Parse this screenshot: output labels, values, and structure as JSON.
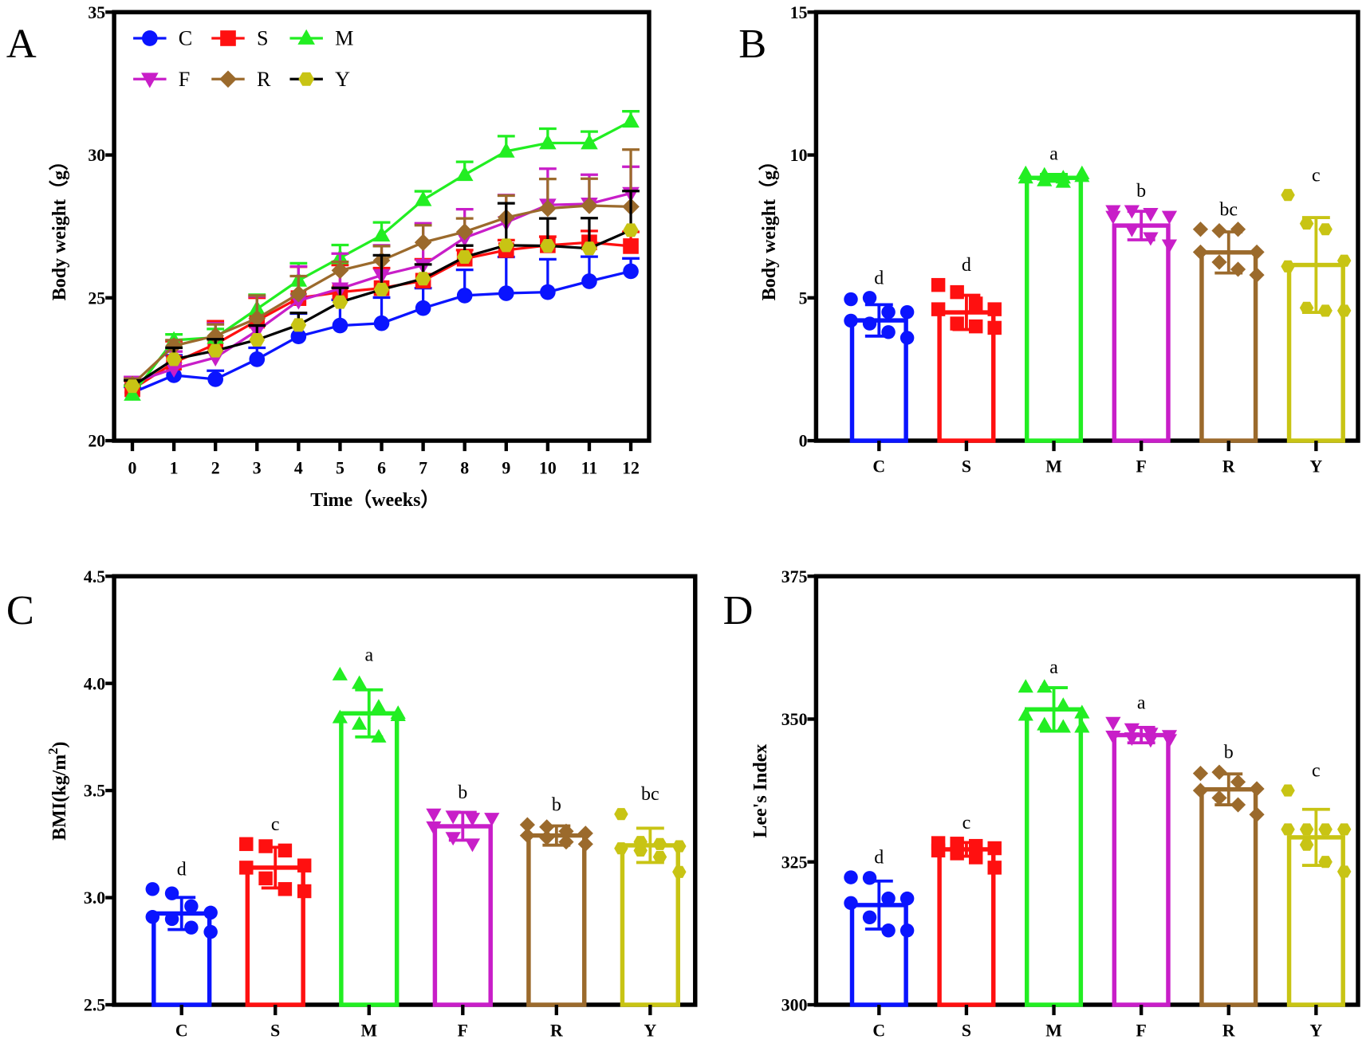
{
  "groups": [
    "C",
    "S",
    "M",
    "F",
    "R",
    "Y"
  ],
  "colors": {
    "C": "#0a14ff",
    "S": "#ff1010",
    "M": "#22ee22",
    "F": "#c81ec8",
    "R": "#9b6a2c",
    "Y": "#c8c414",
    "Y_line": "#000000"
  },
  "markers": {
    "C": "circle",
    "S": "square",
    "M": "triangle-up",
    "F": "triangle-down",
    "R": "diamond",
    "Y": "hexagon"
  },
  "chart_data": [
    {
      "panel": "A",
      "type": "line",
      "ylabel": "Body weight（g）",
      "xlabel": "Time（weeks）",
      "ylim": [
        20,
        35
      ],
      "yticks": [
        "20",
        "25",
        "30",
        "35"
      ],
      "x": [
        0,
        1,
        2,
        3,
        4,
        5,
        6,
        7,
        8,
        9,
        10,
        11,
        12
      ],
      "legend": "top-left",
      "series": [
        {
          "name": "C",
          "values": [
            21.68,
            22.29,
            22.15,
            22.85,
            23.65,
            24.03,
            24.11,
            24.64,
            25.08,
            25.16,
            25.2,
            25.58,
            25.93
          ],
          "err": [
            0.2,
            0.7,
            0.3,
            0.4,
            0.8,
            0.9,
            0.9,
            0.7,
            0.9,
            1.27,
            1.15,
            0.86,
            0.45
          ]
        },
        {
          "name": "S",
          "values": [
            21.8,
            22.73,
            23.38,
            24.2,
            24.99,
            25.2,
            25.34,
            25.6,
            26.37,
            26.67,
            26.84,
            26.94,
            26.81
          ],
          "err": [
            0.3,
            0.75,
            0.8,
            0.8,
            1.1,
            0.95,
            0.7,
            0.75,
            0.3,
            0.35,
            0.3,
            0.4,
            0.5
          ]
        },
        {
          "name": "M",
          "values": [
            21.62,
            23.52,
            23.61,
            24.61,
            25.61,
            26.4,
            27.19,
            28.43,
            29.31,
            30.13,
            30.42,
            30.42,
            31.18
          ],
          "err": [
            0.3,
            0.2,
            0.3,
            0.5,
            0.6,
            0.45,
            0.45,
            0.3,
            0.45,
            0.53,
            0.5,
            0.4,
            0.35
          ]
        },
        {
          "name": "F",
          "values": [
            22.03,
            22.52,
            22.91,
            23.85,
            24.9,
            25.32,
            25.79,
            26.14,
            27.1,
            27.64,
            28.25,
            28.29,
            28.66
          ],
          "err": [
            0.2,
            0.6,
            1.2,
            1.2,
            1.2,
            1.23,
            1.05,
            1.47,
            1.0,
            0.96,
            1.27,
            1.02,
            0.93
          ]
        },
        {
          "name": "R",
          "values": [
            21.97,
            23.32,
            23.67,
            24.28,
            25.14,
            25.96,
            26.31,
            26.94,
            27.31,
            27.81,
            28.13,
            28.23,
            28.19
          ],
          "err": [
            0.2,
            0.2,
            0.4,
            0.8,
            0.62,
            0.3,
            0.5,
            0.6,
            0.47,
            0.77,
            1.03,
            0.94,
            2.0
          ]
        },
        {
          "name": "Y",
          "values": [
            21.91,
            22.85,
            23.15,
            23.53,
            24.05,
            24.85,
            25.29,
            25.67,
            26.43,
            26.84,
            26.82,
            26.73,
            27.37
          ],
          "err": [
            0.2,
            0.4,
            0.4,
            0.5,
            0.42,
            0.5,
            1.2,
            0.5,
            0.4,
            1.47,
            0.96,
            1.06,
            1.37
          ]
        }
      ]
    },
    {
      "panel": "B",
      "type": "bar",
      "ylabel": "Body weight（g）",
      "ylim": [
        0,
        15
      ],
      "yticks": [
        "0",
        "5",
        "10",
        "15"
      ],
      "categories": [
        "C",
        "S",
        "M",
        "F",
        "R",
        "Y"
      ],
      "values": [
        4.21,
        4.49,
        9.2,
        7.53,
        6.59,
        6.15
      ],
      "sd": [
        0.55,
        0.6,
        0.12,
        0.5,
        0.72,
        1.66
      ],
      "letters": [
        "d",
        "d",
        "a",
        "b",
        "bc",
        "c"
      ],
      "points": [
        [
          4.95,
          5.0,
          4.5,
          4.5,
          4.2,
          4.1,
          3.8,
          3.6
        ],
        [
          5.45,
          5.2,
          4.8,
          4.6,
          4.6,
          4.1,
          4.0,
          3.95
        ],
        [
          9.35,
          9.3,
          9.2,
          9.25,
          9.2,
          9.1,
          9.05,
          9.35
        ],
        [
          8.05,
          8.05,
          7.95,
          7.85,
          7.85,
          7.4,
          7.1,
          6.85
        ],
        [
          7.4,
          7.35,
          7.4,
          6.6,
          6.6,
          6.25,
          6.0,
          5.8
        ],
        [
          8.6,
          7.6,
          7.4,
          6.3,
          6.1,
          4.65,
          4.55,
          4.55
        ]
      ]
    },
    {
      "panel": "C",
      "type": "bar",
      "ylabel": "BMI(kg/m",
      "ylabel_sup": "2",
      "ylabel_end": ")",
      "ylim": [
        2.5,
        4.5
      ],
      "yticks": [
        "2.5",
        "3.0",
        "3.5",
        "4.0",
        "4.5"
      ],
      "categories": [
        "C",
        "S",
        "M",
        "F",
        "R",
        "Y"
      ],
      "values": [
        2.926,
        3.14,
        3.86,
        3.333,
        3.29,
        3.244
      ],
      "sd": [
        0.075,
        0.095,
        0.11,
        0.065,
        0.045,
        0.08
      ],
      "letters": [
        "d",
        "c",
        "a",
        "b",
        "b",
        "bc"
      ],
      "points": [
        [
          3.04,
          3.02,
          2.96,
          2.93,
          2.91,
          2.9,
          2.86,
          2.84
        ],
        [
          3.25,
          3.24,
          3.22,
          3.15,
          3.14,
          3.09,
          3.04,
          3.03
        ],
        [
          4.04,
          4.0,
          3.89,
          3.85,
          3.84,
          3.81,
          3.75,
          3.86
        ],
        [
          3.39,
          3.38,
          3.37,
          3.37,
          3.33,
          3.28,
          3.25
        ],
        [
          3.34,
          3.33,
          3.31,
          3.3,
          3.29,
          3.28,
          3.26,
          3.25
        ],
        [
          3.39,
          3.26,
          3.25,
          3.24,
          3.23,
          3.22,
          3.19,
          3.12
        ]
      ]
    },
    {
      "panel": "D",
      "type": "bar",
      "ylabel": "Lee's Index",
      "ylim": [
        300,
        375
      ],
      "yticks": [
        "300",
        "325",
        "350",
        "375"
      ],
      "categories": [
        "C",
        "S",
        "M",
        "F",
        "R",
        "Y"
      ],
      "values": [
        317.45,
        327.2,
        351.7,
        347.2,
        337.7,
        329.3
      ],
      "sd": [
        4.2,
        1.2,
        3.8,
        1.35,
        2.7,
        4.9
      ],
      "letters": [
        "d",
        "c",
        "a",
        "a",
        "b",
        "c"
      ],
      "points": [
        [
          322.3,
          322.2,
          318.6,
          318.6,
          317.8,
          315.3,
          313.0,
          313.0
        ],
        [
          328.3,
          328.2,
          327.8,
          327.4,
          327.0,
          326.5,
          325.8,
          324.0
        ],
        [
          355.6,
          355.6,
          352.4,
          351.1,
          350.7,
          349.0,
          348.6,
          348.6
        ],
        [
          349.4,
          348.3,
          347.5,
          347.1,
          347.0,
          346.7,
          346.4,
          346.4
        ],
        [
          340.5,
          340.7,
          339.0,
          337.8,
          337.5,
          336.2,
          335.0,
          333.3
        ],
        [
          337.5,
          330.7,
          330.7,
          330.7,
          330.7,
          328.0,
          325.0,
          323.3
        ]
      ]
    }
  ]
}
